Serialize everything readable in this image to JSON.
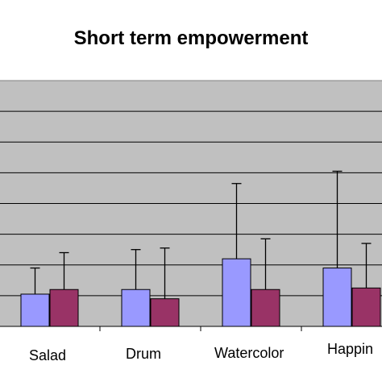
{
  "chart_data": {
    "type": "bar",
    "title": "Short term empowerment",
    "categories": [
      "Salad",
      "Drum",
      "Watercolor",
      "Happin"
    ],
    "series": [
      {
        "values": [
          1.05,
          1.2,
          2.2,
          1.9
        ],
        "error": [
          0.85,
          1.3,
          2.45,
          3.15
        ],
        "color": "#9999ff"
      },
      {
        "values": [
          1.2,
          0.9,
          1.2,
          1.25
        ],
        "error": [
          1.2,
          1.65,
          1.65,
          1.45
        ],
        "color": "#993366"
      }
    ],
    "ylim": [
      0,
      8
    ],
    "grid": true,
    "plot_background": "#c0c0c0"
  }
}
